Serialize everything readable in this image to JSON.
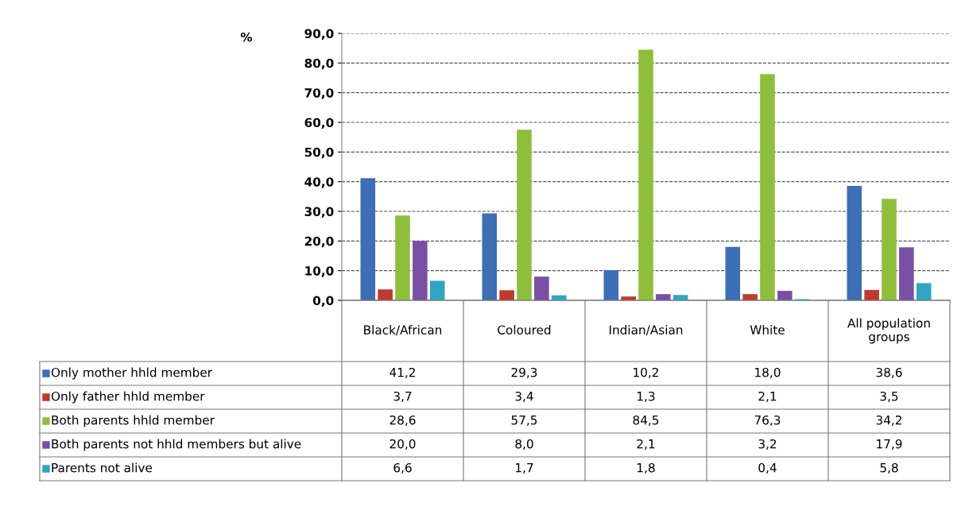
{
  "chart_data": {
    "type": "bar",
    "ylabel": "%",
    "categories": [
      "Black/African",
      "Coloured",
      "Indian/Asian",
      "White",
      "All population\ngroups"
    ],
    "ylim": [
      0,
      90
    ],
    "yticks": [
      {
        "value": 0,
        "label": "0,0"
      },
      {
        "value": 10,
        "label": "10,0"
      },
      {
        "value": 20,
        "label": "20,0"
      },
      {
        "value": 30,
        "label": "30,0"
      },
      {
        "value": 40,
        "label": "40,0"
      },
      {
        "value": 50,
        "label": "50,0"
      },
      {
        "value": 60,
        "label": "60,0"
      },
      {
        "value": 70,
        "label": "70,0"
      },
      {
        "value": 80,
        "label": "80,0"
      },
      {
        "value": 90,
        "label": "90,0"
      }
    ],
    "grid": "y",
    "legend": "bottom",
    "series": [
      {
        "name": "Only mother hhld member",
        "color": "#3c6fb6",
        "values": [
          41.2,
          29.3,
          10.2,
          18.0,
          38.6
        ],
        "value_labels": [
          "41,2",
          "29,3",
          "10,2",
          "18,0",
          "38,6"
        ]
      },
      {
        "name": "Only father hhld member",
        "color": "#c0392f",
        "values": [
          3.7,
          3.4,
          1.3,
          2.1,
          3.5
        ],
        "value_labels": [
          "3,7",
          "3,4",
          "1,3",
          "2,1",
          "3,5"
        ]
      },
      {
        "name": "Both parents hhld member",
        "color": "#8ebf3a",
        "values": [
          28.6,
          57.5,
          84.5,
          76.3,
          34.2
        ],
        "value_labels": [
          "28,6",
          "57,5",
          "84,5",
          "76,3",
          "34,2"
        ]
      },
      {
        "name": "Both parents not hhld members but alive",
        "color": "#7a4fa6",
        "values": [
          20.0,
          8.0,
          2.1,
          3.2,
          17.9
        ],
        "value_labels": [
          "20,0",
          "8,0",
          "2,1",
          "3,2",
          "17,9"
        ]
      },
      {
        "name": "Parents not alive",
        "color": "#2fa6c4",
        "values": [
          6.6,
          1.7,
          1.8,
          0.4,
          5.8
        ],
        "value_labels": [
          "6,6",
          "1,7",
          "1,8",
          "0,4",
          "5,8"
        ]
      }
    ]
  }
}
